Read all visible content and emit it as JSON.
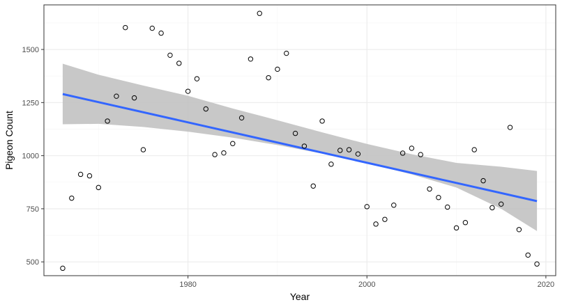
{
  "chart_data": {
    "type": "scatter",
    "title": "",
    "xlabel": "Year",
    "ylabel": "Pigeon Count",
    "xlim": [
      1963.9,
      2021.1
    ],
    "ylim": [
      435,
      1710
    ],
    "x_ticks": [
      1980,
      2000,
      2020
    ],
    "y_ticks": [
      500,
      750,
      1000,
      1250,
      1500
    ],
    "x_tick_labels": [
      "1980",
      "2000",
      "2020"
    ],
    "y_tick_labels": [
      "500",
      "750",
      "1000",
      "1250",
      "1500"
    ],
    "grid": true,
    "legend": "none",
    "points": [
      {
        "x": 1966,
        "y": 470
      },
      {
        "x": 1967,
        "y": 800
      },
      {
        "x": 1968,
        "y": 912
      },
      {
        "x": 1969,
        "y": 905
      },
      {
        "x": 1970,
        "y": 850
      },
      {
        "x": 1971,
        "y": 1163
      },
      {
        "x": 1972,
        "y": 1280
      },
      {
        "x": 1973,
        "y": 1603
      },
      {
        "x": 1974,
        "y": 1272
      },
      {
        "x": 1975,
        "y": 1028
      },
      {
        "x": 1976,
        "y": 1600
      },
      {
        "x": 1977,
        "y": 1577
      },
      {
        "x": 1978,
        "y": 1473
      },
      {
        "x": 1979,
        "y": 1435
      },
      {
        "x": 1980,
        "y": 1303
      },
      {
        "x": 1981,
        "y": 1362
      },
      {
        "x": 1982,
        "y": 1220
      },
      {
        "x": 1983,
        "y": 1005
      },
      {
        "x": 1984,
        "y": 1013
      },
      {
        "x": 1985,
        "y": 1057
      },
      {
        "x": 1986,
        "y": 1178
      },
      {
        "x": 1987,
        "y": 1455
      },
      {
        "x": 1988,
        "y": 1670
      },
      {
        "x": 1989,
        "y": 1367
      },
      {
        "x": 1990,
        "y": 1407
      },
      {
        "x": 1991,
        "y": 1482
      },
      {
        "x": 1992,
        "y": 1105
      },
      {
        "x": 1993,
        "y": 1045
      },
      {
        "x": 1994,
        "y": 857
      },
      {
        "x": 1995,
        "y": 1163
      },
      {
        "x": 1996,
        "y": 960
      },
      {
        "x": 1997,
        "y": 1025
      },
      {
        "x": 1998,
        "y": 1028
      },
      {
        "x": 1999,
        "y": 1008
      },
      {
        "x": 2000,
        "y": 760
      },
      {
        "x": 2001,
        "y": 678
      },
      {
        "x": 2002,
        "y": 700
      },
      {
        "x": 2003,
        "y": 767
      },
      {
        "x": 2004,
        "y": 1012
      },
      {
        "x": 2005,
        "y": 1035
      },
      {
        "x": 2006,
        "y": 1005
      },
      {
        "x": 2007,
        "y": 843
      },
      {
        "x": 2008,
        "y": 803
      },
      {
        "x": 2009,
        "y": 758
      },
      {
        "x": 2010,
        "y": 660
      },
      {
        "x": 2011,
        "y": 685
      },
      {
        "x": 2012,
        "y": 1028
      },
      {
        "x": 2013,
        "y": 882
      },
      {
        "x": 2014,
        "y": 755
      },
      {
        "x": 2015,
        "y": 772
      },
      {
        "x": 2016,
        "y": 1133
      },
      {
        "x": 2017,
        "y": 652
      },
      {
        "x": 2018,
        "y": 532
      },
      {
        "x": 2019,
        "y": 490
      }
    ],
    "trend_line": {
      "method": "linear",
      "x": [
        1966,
        2019
      ],
      "y": [
        1290,
        786
      ],
      "color": "#3366ff"
    },
    "confidence_band": {
      "color": "#bebebe",
      "x": [
        1966,
        1970,
        1975,
        1980,
        1985,
        1990,
        1995,
        2000,
        2005,
        2010,
        2015,
        2019
      ],
      "lower": [
        1148,
        1150,
        1135,
        1113,
        1085,
        1050,
        1010,
        965,
        912,
        850,
        750,
        645
      ],
      "upper": [
        1433,
        1381,
        1330,
        1282,
        1222,
        1167,
        1110,
        1055,
        1007,
        966,
        948,
        928
      ]
    },
    "colors": {
      "panel_border": "#333333",
      "grid_major": "#ebebeb",
      "grid_minor": "#f5f5f5",
      "point_stroke": "#000000"
    }
  }
}
